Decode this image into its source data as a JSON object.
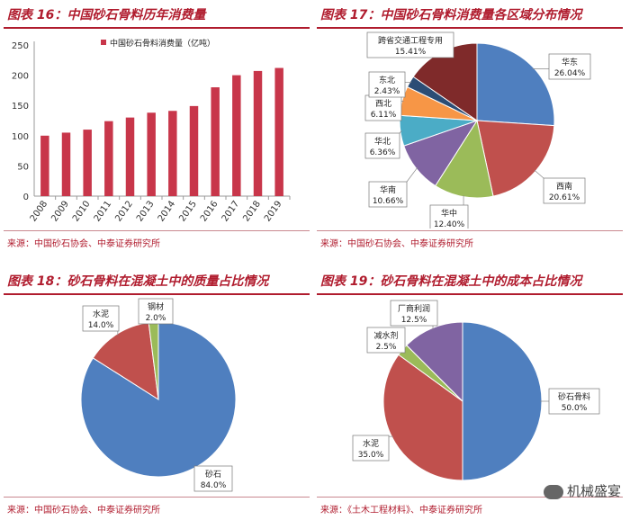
{
  "panels": {
    "p16": {
      "title": "图表 16：中国砂石骨料历年消费量",
      "source": "来源：中国砂石协会、中泰证券研究所"
    },
    "p17": {
      "title": "图表 17：中国砂石骨料消费量各区域分布情况",
      "source": "来源：中国砂石协会、中泰证券研究所"
    },
    "p18": {
      "title": "图表 18：砂石骨料在混凝土中的质量占比情况",
      "source": "来源：中国砂石协会、中泰证券研究所"
    },
    "p19": {
      "title": "图表 19：砂石骨料在混凝土中的成本占比情况",
      "source": "来源：《土木工程材料》、中泰证券研究所"
    }
  },
  "watermark": {
    "text": "机械盛宴",
    "icon": "wechat-icon"
  },
  "chart_data": [
    {
      "type": "bar",
      "categories": [
        "2008",
        "2009",
        "2010",
        "2011",
        "2012",
        "2013",
        "2014",
        "2015",
        "2016",
        "2017",
        "2018",
        "2019"
      ],
      "series": [
        {
          "name": "中国砂石骨料消费量（亿吨）",
          "values": [
            100,
            105,
            110,
            124,
            130,
            138,
            141,
            149,
            180,
            200,
            207,
            212
          ],
          "color": "#c8364a"
        }
      ],
      "ylim": [
        0,
        250
      ],
      "yticks": [
        0,
        50,
        100,
        150,
        200,
        250
      ],
      "legend": "top"
    },
    {
      "type": "pie",
      "slices": [
        {
          "label": "华东",
          "pct": "26.04%",
          "value": 26.04,
          "color": "#4f7fbf"
        },
        {
          "label": "西南",
          "pct": "20.61%",
          "value": 20.61,
          "color": "#c0504d"
        },
        {
          "label": "华中",
          "pct": "12.40%",
          "value": 12.4,
          "color": "#9bbb59"
        },
        {
          "label": "华南",
          "pct": "10.66%",
          "value": 10.66,
          "color": "#8064a2"
        },
        {
          "label": "华北",
          "pct": "6.36%",
          "value": 6.36,
          "color": "#4bacc6"
        },
        {
          "label": "西北",
          "pct": "6.11%",
          "value": 6.11,
          "color": "#f79646"
        },
        {
          "label": "东北",
          "pct": "2.43%",
          "value": 2.43,
          "color": "#2c4d75"
        },
        {
          "label": "跨省交通工程专用",
          "pct": "15.41%",
          "value": 15.41,
          "color": "#7f2a2a"
        }
      ]
    },
    {
      "type": "pie",
      "slices": [
        {
          "label": "砂石",
          "pct": "84.0%",
          "value": 84.0,
          "color": "#4f7fbf"
        },
        {
          "label": "水泥",
          "pct": "14.0%",
          "value": 14.0,
          "color": "#c0504d"
        },
        {
          "label": "钢材",
          "pct": "2.0%",
          "value": 2.0,
          "color": "#9bbb59"
        }
      ]
    },
    {
      "type": "pie",
      "slices": [
        {
          "label": "砂石骨料",
          "pct": "50.0%",
          "value": 50.0,
          "color": "#4f7fbf"
        },
        {
          "label": "水泥",
          "pct": "35.0%",
          "value": 35.0,
          "color": "#c0504d"
        },
        {
          "label": "减水剂",
          "pct": "2.5%",
          "value": 2.5,
          "color": "#9bbb59"
        },
        {
          "label": "厂商利润",
          "pct": "12.5%",
          "value": 12.5,
          "color": "#8064a2"
        }
      ]
    }
  ]
}
